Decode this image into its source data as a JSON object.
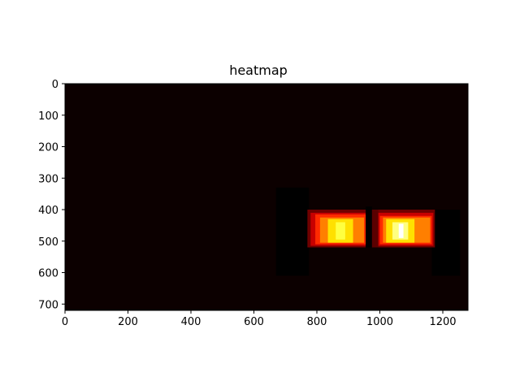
{
  "chart_data": {
    "type": "heatmap",
    "title": "heatmap",
    "xlabel": "",
    "ylabel": "",
    "xlim": [
      0,
      1280
    ],
    "ylim": [
      720,
      0
    ],
    "x_ticks": [
      0,
      200,
      400,
      600,
      800,
      1000,
      1200
    ],
    "y_ticks": [
      0,
      100,
      200,
      300,
      400,
      500,
      600,
      700
    ],
    "colormap": "hot",
    "background_color": "#0c0000",
    "grid": false,
    "blobs": [
      {
        "x0": 670,
        "x1": 775,
        "y0": 330,
        "y1": 610,
        "color": "#000000"
      },
      {
        "x0": 1165,
        "x1": 1255,
        "y0": 400,
        "y1": 610,
        "color": "#000000"
      },
      {
        "x0": 770,
        "x1": 965,
        "y0": 400,
        "y1": 520,
        "color": "#6f0000"
      },
      {
        "x0": 990,
        "x1": 1175,
        "y0": 400,
        "y1": 520,
        "color": "#6f0000"
      },
      {
        "x0": 780,
        "x1": 960,
        "y0": 410,
        "y1": 515,
        "color": "#c80000"
      },
      {
        "x0": 995,
        "x1": 1170,
        "y0": 410,
        "y1": 515,
        "color": "#c80000"
      },
      {
        "x0": 795,
        "x1": 955,
        "y0": 415,
        "y1": 510,
        "color": "#ff2a00"
      },
      {
        "x0": 1000,
        "x1": 1165,
        "y0": 420,
        "y1": 510,
        "color": "#ff2a00"
      },
      {
        "x0": 810,
        "x1": 950,
        "y0": 425,
        "y1": 505,
        "color": "#ff7f00"
      },
      {
        "x0": 1010,
        "x1": 1160,
        "y0": 425,
        "y1": 505,
        "color": "#ff7f00"
      },
      {
        "x0": 835,
        "x1": 915,
        "y0": 430,
        "y1": 505,
        "color": "#ffe000"
      },
      {
        "x0": 1020,
        "x1": 1110,
        "y0": 430,
        "y1": 505,
        "color": "#ffe000"
      },
      {
        "x0": 860,
        "x1": 890,
        "y0": 440,
        "y1": 495,
        "color": "#ffff40"
      },
      {
        "x0": 1040,
        "x1": 1090,
        "y0": 440,
        "y1": 495,
        "color": "#ffff80"
      },
      {
        "x0": 1060,
        "x1": 1075,
        "y0": 445,
        "y1": 490,
        "color": "#ffffff"
      },
      {
        "x0": 955,
        "x1": 975,
        "y0": 390,
        "y1": 520,
        "color": "#000000"
      },
      {
        "x0": 975,
        "x1": 995,
        "y0": 400,
        "y1": 520,
        "color": "#5a0000"
      }
    ]
  }
}
